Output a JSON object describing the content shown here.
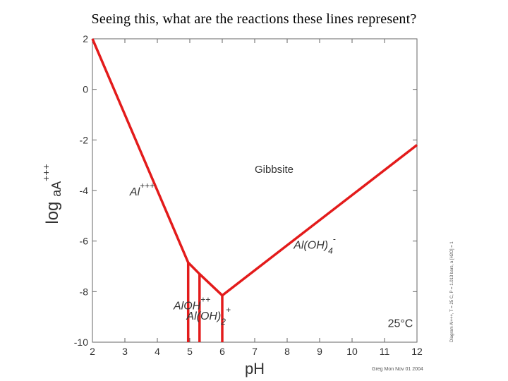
{
  "slide": {
    "question": "Seeing this, what are the reactions these lines represent?"
  },
  "chart_data": {
    "type": "line",
    "title": "",
    "xlabel": "pH",
    "ylabel": "log a",
    "ylabel_species": "A",
    "ylabel_charge": "+++",
    "xlim": [
      2,
      12
    ],
    "ylim": [
      -10,
      2
    ],
    "xticks": [
      "2",
      "3",
      "4",
      "5",
      "6",
      "7",
      "8",
      "9",
      "10",
      "11",
      "12"
    ],
    "yticks": [
      "2",
      "0",
      "-2",
      "-4",
      "-6",
      "-8",
      "-10"
    ],
    "line_color": "#e31b1b",
    "series": [
      {
        "values": [
          [
            2,
            2.0
          ],
          [
            4.95,
            -6.85
          ],
          [
            5.3,
            -7.3
          ],
          [
            6.0,
            -8.15
          ],
          [
            12,
            -2.2
          ]
        ]
      },
      {
        "values": [
          [
            4.95,
            -6.85
          ],
          [
            4.95,
            -10
          ]
        ]
      },
      {
        "values": [
          [
            5.3,
            -7.3
          ],
          [
            5.3,
            -10
          ]
        ]
      },
      {
        "values": [
          [
            6.0,
            -8.15
          ],
          [
            6.0,
            -10
          ]
        ]
      }
    ],
    "annotations": [
      {
        "text": "Gibbsite",
        "x": 7.0,
        "y": -3.3
      },
      {
        "text": "Al",
        "sup": "+++",
        "x": 3.15,
        "y": -4.2
      },
      {
        "text": "Al(OH)",
        "sub": "4",
        "sup": "-",
        "x": 8.2,
        "y": -6.3
      },
      {
        "text": "AlOH",
        "sup": "++",
        "x": 4.5,
        "y": -8.7
      },
      {
        "text": "Al(OH)",
        "sub": "2",
        "sup": "+",
        "x": 4.9,
        "y": -9.1
      },
      {
        "text": "25°C",
        "x": 11.1,
        "y": -9.4
      }
    ],
    "side_note": "Diagram Al+++, T = 25 C, P = 1.013 bars, a [H2O] = 1",
    "credit": "Greg Mon Nov 01 2004",
    "grid": false
  }
}
